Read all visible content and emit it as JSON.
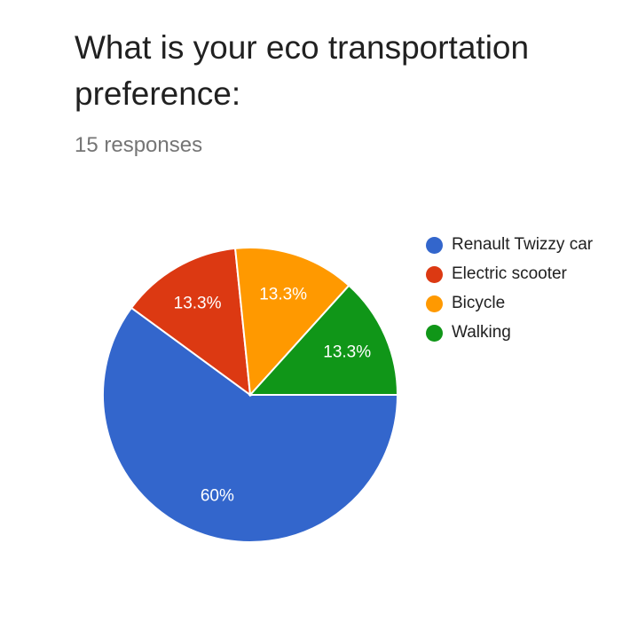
{
  "header": {
    "title": "What is your eco transportation preference:",
    "responses": "15 responses"
  },
  "chart_data": {
    "type": "pie",
    "slices": [
      {
        "label": "Renault Twizzy car",
        "value": 60,
        "display": "60%",
        "color": "#3366cc"
      },
      {
        "label": "Electric scooter",
        "value": 13.3,
        "display": "13.3%",
        "color": "#dc3912"
      },
      {
        "label": "Bicycle",
        "value": 13.3,
        "display": "13.3%",
        "color": "#ff9900"
      },
      {
        "label": "Walking",
        "value": 13.3,
        "display": "13.3%",
        "color": "#109618"
      }
    ],
    "legend_position": "right"
  }
}
